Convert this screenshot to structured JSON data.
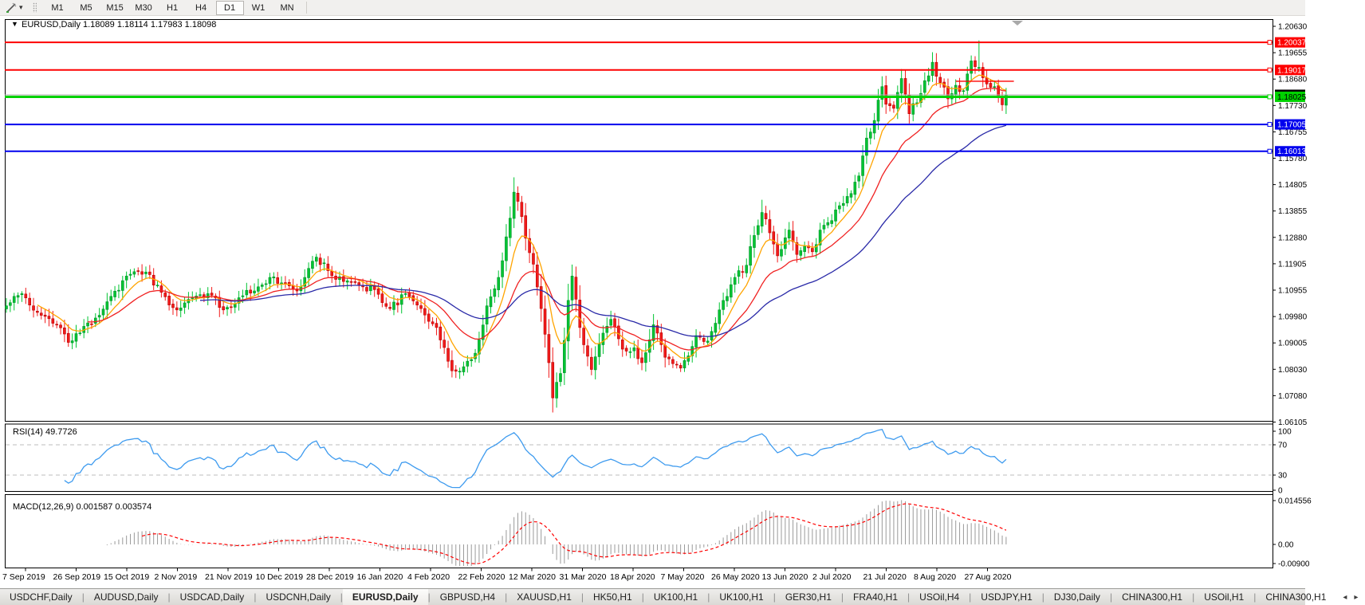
{
  "toolbar": {
    "draw_tool_caret": "▾",
    "timeframes": [
      "M1",
      "M5",
      "M15",
      "M30",
      "H1",
      "H4",
      "D1",
      "W1",
      "MN"
    ],
    "active_timeframe": "D1"
  },
  "chart_data": {
    "type": "candlestick",
    "title": {
      "collapse_icon": "▼",
      "symbol_timeframe": "EURUSD,Daily",
      "open": "1.18089",
      "high": "1.18114",
      "low": "1.17983",
      "close": "1.18098"
    },
    "price_axis_ticks": [
      "1.20630",
      "1.19655",
      "1.18680",
      "1.17730",
      "1.16755",
      "1.15780",
      "1.14805",
      "1.13855",
      "1.12880",
      "1.11905",
      "1.10955",
      "1.09980",
      "1.09005",
      "1.08030",
      "1.07080",
      "1.06105"
    ],
    "date_axis_ticks": [
      "7 Sep 2019",
      "26 Sep 2019",
      "15 Oct 2019",
      "2 Nov 2019",
      "21 Nov 2019",
      "10 Dec 2019",
      "28 Dec 2019",
      "16 Jan 2020",
      "4 Feb 2020",
      "22 Feb 2020",
      "12 Mar 2020",
      "31 Mar 2020",
      "18 Apr 2020",
      "7 May 2020",
      "26 May 2020",
      "13 Jun 2020",
      "2 Jul 2020",
      "21 Jul 2020",
      "8 Aug 2020",
      "27 Aug 2020"
    ],
    "hlines": [
      {
        "price": "1.20037",
        "value": 1.20037,
        "color": "#FE0000",
        "width": 2,
        "text_color": "#FFFFFF"
      },
      {
        "price": "1.19017",
        "value": 1.19017,
        "color": "#FE0000",
        "width": 2,
        "text_color": "#FFFFFF"
      },
      {
        "price": "1.18025",
        "value": 1.18025,
        "color": "#00D200",
        "width": 3,
        "text_color": "#000000"
      },
      {
        "price": "1.17005",
        "value": 1.17005,
        "color": "#0000EE",
        "width": 2,
        "text_color": "#FFFFFF"
      },
      {
        "price": "1.16013",
        "value": 1.16013,
        "color": "#0000EE",
        "width": 2,
        "text_color": "#FFFFFF"
      }
    ],
    "bid_line": {
      "price": "1.18098",
      "value": 1.18098,
      "line_color": "#ABABAB",
      "label_bg": "#000000",
      "label_text": "#FFFFFF"
    },
    "trend_segment": {
      "value": 1.186,
      "from_index": 245,
      "to_index": 260,
      "color": "#FE0000"
    },
    "shift_marker_color": "#A9A9A9",
    "candles": {
      "count": 259,
      "up_color": "#00C432",
      "up_border": "#00922A",
      "down_color": "#F21B1B",
      "down_border": "#B80000",
      "noise": 0.003,
      "anchors": [
        [
          0,
          1.103
        ],
        [
          4,
          1.1075
        ],
        [
          9,
          1.0995
        ],
        [
          13,
          1.096
        ],
        [
          16,
          1.0895
        ],
        [
          19,
          1.093
        ],
        [
          23,
          1.0985
        ],
        [
          27,
          1.1065
        ],
        [
          31,
          1.114
        ],
        [
          36,
          1.1155
        ],
        [
          40,
          1.108
        ],
        [
          44,
          1.1015
        ],
        [
          48,
          1.106
        ],
        [
          52,
          1.1075
        ],
        [
          56,
          1.1015
        ],
        [
          60,
          1.106
        ],
        [
          64,
          1.1085
        ],
        [
          68,
          1.1135
        ],
        [
          71,
          1.1115
        ],
        [
          75,
          1.1085
        ],
        [
          79,
          1.1195
        ],
        [
          80,
          1.121
        ],
        [
          83,
          1.116
        ],
        [
          87,
          1.112
        ],
        [
          91,
          1.1105
        ],
        [
          95,
          1.109
        ],
        [
          99,
          1.102
        ],
        [
          103,
          1.1075
        ],
        [
          107,
          1.102
        ],
        [
          111,
          1.095
        ],
        [
          115,
          1.079
        ],
        [
          118,
          1.0805
        ],
        [
          121,
          1.0855
        ],
        [
          124,
          1.103
        ],
        [
          127,
          1.1135
        ],
        [
          129,
          1.1285
        ],
        [
          131,
          1.145
        ],
        [
          133,
          1.136
        ],
        [
          134,
          1.128
        ],
        [
          136,
          1.1184
        ],
        [
          138,
          1.102
        ],
        [
          140,
          1.082
        ],
        [
          141,
          1.069
        ],
        [
          143,
          1.078
        ],
        [
          145,
          1.105
        ],
        [
          146,
          1.114
        ],
        [
          148,
          1.095
        ],
        [
          151,
          1.0795
        ],
        [
          153,
          1.089
        ],
        [
          156,
          1.098
        ],
        [
          159,
          1.087
        ],
        [
          162,
          1.0875
        ],
        [
          164,
          1.082
        ],
        [
          167,
          1.096
        ],
        [
          170,
          1.084
        ],
        [
          174,
          1.08
        ],
        [
          178,
          1.092
        ],
        [
          181,
          1.09
        ],
        [
          184,
          1.1015
        ],
        [
          188,
          1.1135
        ],
        [
          191,
          1.118
        ],
        [
          193,
          1.129
        ],
        [
          195,
          1.1375
        ],
        [
          197,
          1.13
        ],
        [
          199,
          1.1215
        ],
        [
          202,
          1.131
        ],
        [
          204,
          1.122
        ],
        [
          206,
          1.125
        ],
        [
          208,
          1.123
        ],
        [
          210,
          1.131
        ],
        [
          213,
          1.1345
        ],
        [
          215,
          1.14
        ],
        [
          218,
          1.1445
        ],
        [
          220,
          1.151
        ],
        [
          222,
          1.165
        ],
        [
          224,
          1.1715
        ],
        [
          226,
          1.184
        ],
        [
          227,
          1.1775
        ],
        [
          229,
          1.176
        ],
        [
          231,
          1.187
        ],
        [
          233,
          1.174
        ],
        [
          236,
          1.1815
        ],
        [
          238,
          1.188
        ],
        [
          239,
          1.193
        ],
        [
          241,
          1.1855
        ],
        [
          243,
          1.1795
        ],
        [
          245,
          1.1845
        ],
        [
          247,
          1.1825
        ],
        [
          249,
          1.1935
        ],
        [
          251,
          1.1911
        ],
        [
          253,
          1.185
        ],
        [
          255,
          1.184
        ],
        [
          257,
          1.1773
        ],
        [
          258,
          1.181
        ]
      ],
      "wick_overrides": [
        {
          "i": 131,
          "high": 1.1505
        },
        {
          "i": 141,
          "low": 1.0636
        },
        {
          "i": 195,
          "high": 1.1422
        },
        {
          "i": 251,
          "high": 1.2011
        }
      ]
    },
    "moving_averages": [
      {
        "name": "fast",
        "period": 8,
        "color": "#FFA400"
      },
      {
        "name": "mid",
        "period": 21,
        "color": "#F02222"
      },
      {
        "name": "slow",
        "period": 50,
        "color": "#2A2AA8"
      }
    ],
    "rsi": {
      "label": "RSI(14) 49.7726",
      "period": 14,
      "axis_labels": [
        "100",
        "70",
        "30",
        "0"
      ],
      "line_color": "#3E9BEF",
      "level_color": "#BDBDBD"
    },
    "macd": {
      "label": "MACD(12,26,9) 0.001587 0.003574",
      "fast": 12,
      "slow": 26,
      "signal": 9,
      "axis_labels": [
        "0.014556",
        "0.00",
        "-0.00900"
      ],
      "histogram_color": "#9A9A9A",
      "signal_color": "#FE0000"
    }
  },
  "tab_bar": {
    "scroll_left_glyph": "◂",
    "scroll_right_glyph": "▸",
    "tabs": [
      {
        "label": "USDCHF,Daily"
      },
      {
        "label": "AUDUSD,Daily"
      },
      {
        "label": "USDCAD,Daily"
      },
      {
        "label": "USDCNH,Daily"
      },
      {
        "label": "EURUSD,Daily",
        "active": true
      },
      {
        "label": "GBPUSD,H4"
      },
      {
        "label": "XAUUSD,H1"
      },
      {
        "label": "HK50,H1"
      },
      {
        "label": "UK100,H1"
      },
      {
        "label": "UK100,H1"
      },
      {
        "label": "GER30,H1"
      },
      {
        "label": "FRA40,H1"
      },
      {
        "label": "USOil,H4"
      },
      {
        "label": "USDJPY,H1"
      },
      {
        "label": "DJ30,Daily"
      },
      {
        "label": "CHINA300,H1"
      },
      {
        "label": "USOil,H1"
      },
      {
        "label": "CHINA300,H1"
      }
    ]
  }
}
